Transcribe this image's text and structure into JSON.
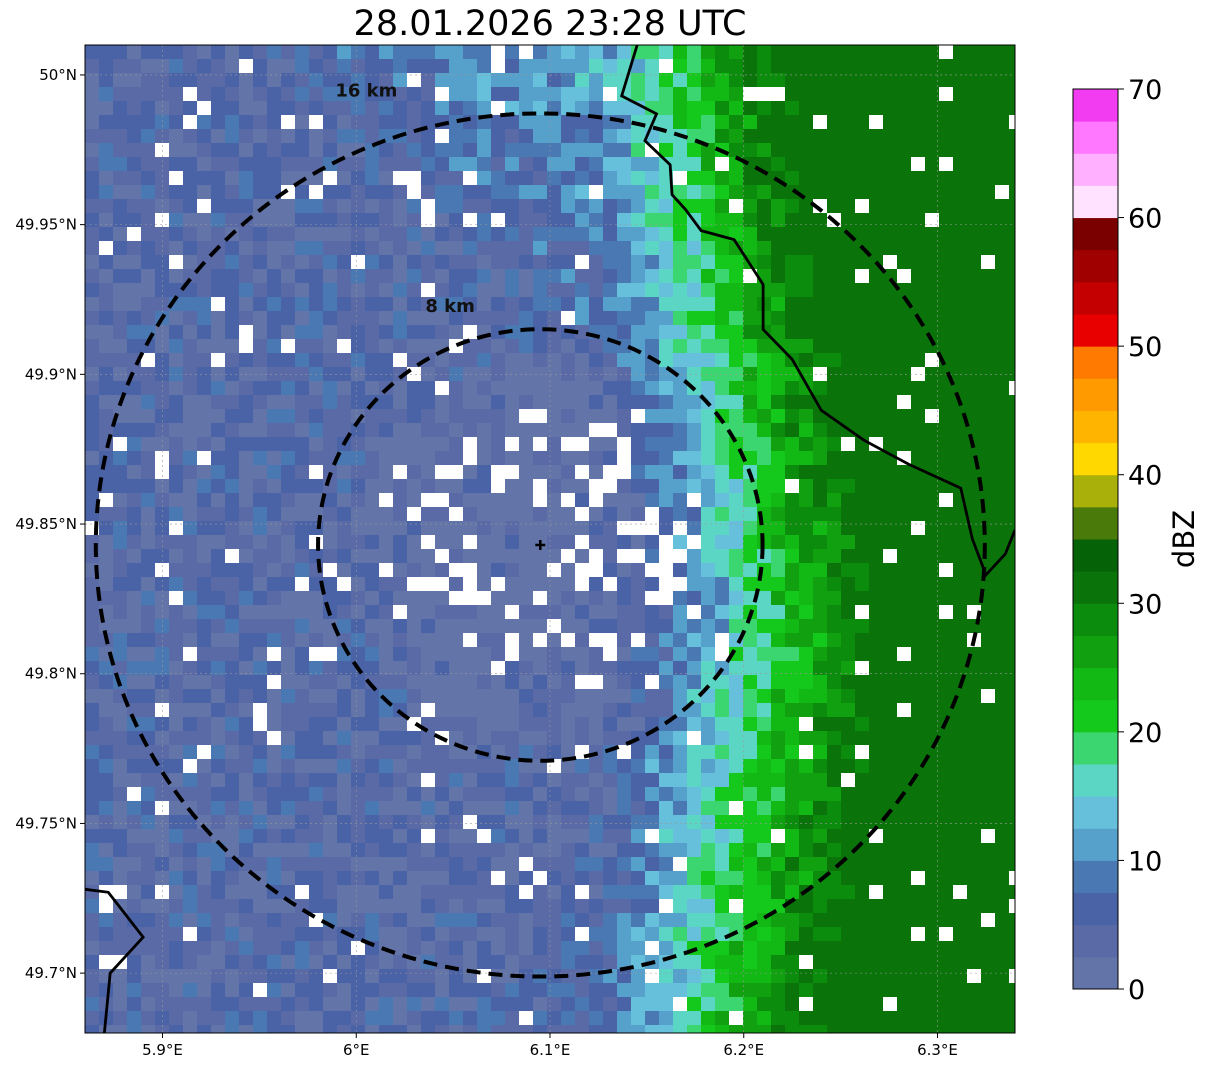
{
  "title": "28.01.2026 23:28 UTC",
  "map": {
    "lon_range": [
      5.86,
      6.34
    ],
    "lat_range": [
      49.68,
      50.01
    ],
    "radar_site": {
      "lon": 6.095,
      "lat": 49.843
    },
    "lon_ticks": [
      {
        "value": 5.9,
        "label": "5.9°E"
      },
      {
        "value": 6.0,
        "label": "6°E"
      },
      {
        "value": 6.1,
        "label": "6.1°E"
      },
      {
        "value": 6.2,
        "label": "6.2°E"
      },
      {
        "value": 6.3,
        "label": "6.3°E"
      }
    ],
    "lat_ticks": [
      {
        "value": 50.0,
        "label": "50°N"
      },
      {
        "value": 49.95,
        "label": "49.95°N"
      },
      {
        "value": 49.9,
        "label": "49.9°N"
      },
      {
        "value": 49.85,
        "label": "49.85°N"
      },
      {
        "value": 49.8,
        "label": "49.8°N"
      },
      {
        "value": 49.75,
        "label": "49.75°N"
      },
      {
        "value": 49.7,
        "label": "49.7°N"
      }
    ],
    "range_rings": [
      {
        "radius_km": 8,
        "label": "8 km"
      },
      {
        "radius_km": 16,
        "label": "16 km"
      }
    ],
    "gridlines": true
  },
  "colorbar": {
    "label": "dBZ",
    "range": [
      0,
      70
    ],
    "ticks": [
      {
        "value": 0,
        "label": "0"
      },
      {
        "value": 10,
        "label": "10"
      },
      {
        "value": 20,
        "label": "20"
      },
      {
        "value": 30,
        "label": "30"
      },
      {
        "value": 40,
        "label": "40"
      },
      {
        "value": 50,
        "label": "50"
      },
      {
        "value": 60,
        "label": "60"
      },
      {
        "value": 70,
        "label": "70"
      }
    ],
    "colors": [
      "#6374a8",
      "#5a6aa6",
      "#4a62a6",
      "#4a78b2",
      "#56a0cc",
      "#66c0dc",
      "#5cd6c4",
      "#3cd670",
      "#14c81c",
      "#12b814",
      "#10a010",
      "#0c8c0c",
      "#0a740a",
      "#066206",
      "#4a7a0a",
      "#aab00a",
      "#ffd800",
      "#ffb400",
      "#ff9a00",
      "#ff7a00",
      "#e80000",
      "#c40000",
      "#a00000",
      "#7a0000",
      "#ffe2ff",
      "#ffb0ff",
      "#ff78ff",
      "#f23cf2"
    ]
  }
}
